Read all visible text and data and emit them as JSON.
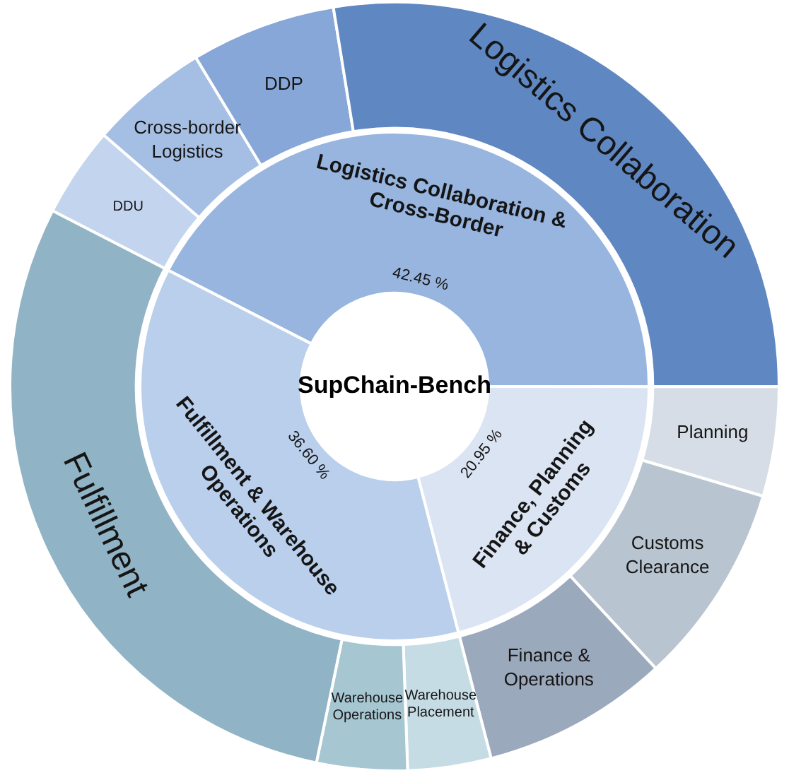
{
  "chart_data": [
    {
      "type": "donut",
      "title": "SupChain-Bench",
      "categories": [
        "Logistics Collaboration & Cross-Border",
        "Finance, Planning & Customs",
        "Fulfillment & Warehouse Operations"
      ],
      "values": [
        42.45,
        20.95,
        36.6
      ],
      "value_labels": [
        "42.45 %",
        "20.95 %",
        "36.60 %"
      ],
      "colors": [
        "#97b5df",
        "#dbe4f2",
        "#b9cfec"
      ]
    },
    {
      "type": "donut",
      "categories": [
        "DDU",
        "Cross-border Logistics",
        "DDP",
        "Logistics Collaboration",
        "Planning",
        "Customs Clearance",
        "Finance & Operations",
        "Warehouse Placement",
        "Warehouse Operations",
        "Fulfillment"
      ],
      "values": [
        3.8,
        5,
        6.1,
        27.55,
        4.6,
        8.5,
        7.85,
        3.5,
        3.8,
        29.3
      ],
      "colors": [
        "#c3d4ee",
        "#a5bfe4",
        "#86a7d7",
        "#5f87c2",
        "#d6dde6",
        "#b8c4d0",
        "#9ba9bc",
        "#c5dce4",
        "#a6c6d2",
        "#90b4c5"
      ]
    }
  ]
}
